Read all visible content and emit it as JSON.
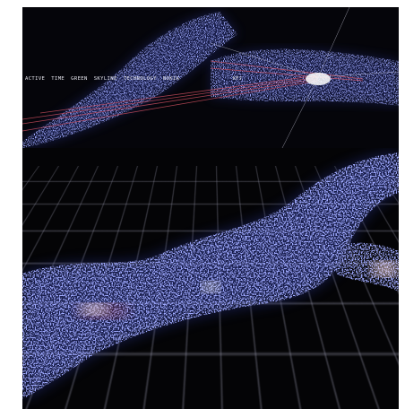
{
  "menu": {
    "items": [
      "ACTIVE",
      "TIME",
      "GREEN",
      "SKYLINE",
      "TECHNOLOGY",
      "NOKIA"
    ],
    "extra": "KFJ"
  }
}
